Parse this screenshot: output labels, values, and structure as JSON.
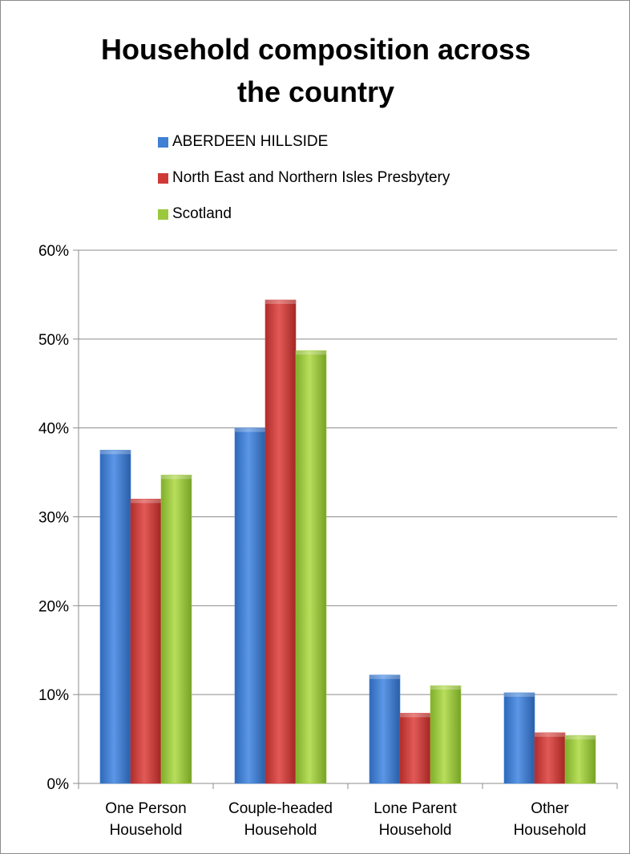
{
  "chart_data": {
    "type": "bar",
    "title_lines": [
      "Household composition across",
      "the country"
    ],
    "categories": [
      [
        "One Person",
        "Household"
      ],
      [
        "Couple-headed",
        "Household"
      ],
      [
        "Lone Parent",
        "Household"
      ],
      [
        "Other",
        "Household"
      ]
    ],
    "series": [
      {
        "name": "ABERDEEN HILLSIDE",
        "color": "#3f7fd4",
        "values": [
          37.5,
          40.0,
          12.2,
          10.2
        ]
      },
      {
        "name": "North East and Northern Isles Presbytery",
        "color": "#cf3a38",
        "values": [
          32.0,
          54.4,
          7.9,
          5.7
        ]
      },
      {
        "name": "Scotland",
        "color": "#9cc83c",
        "values": [
          34.7,
          48.7,
          11.0,
          5.4
        ]
      }
    ],
    "ylim": [
      0,
      60
    ],
    "yticks": [
      0,
      10,
      20,
      30,
      40,
      50,
      60
    ],
    "ytick_labels": [
      "0%",
      "10%",
      "20%",
      "30%",
      "40%",
      "50%",
      "60%"
    ],
    "grid": true,
    "legend_position": "top"
  }
}
